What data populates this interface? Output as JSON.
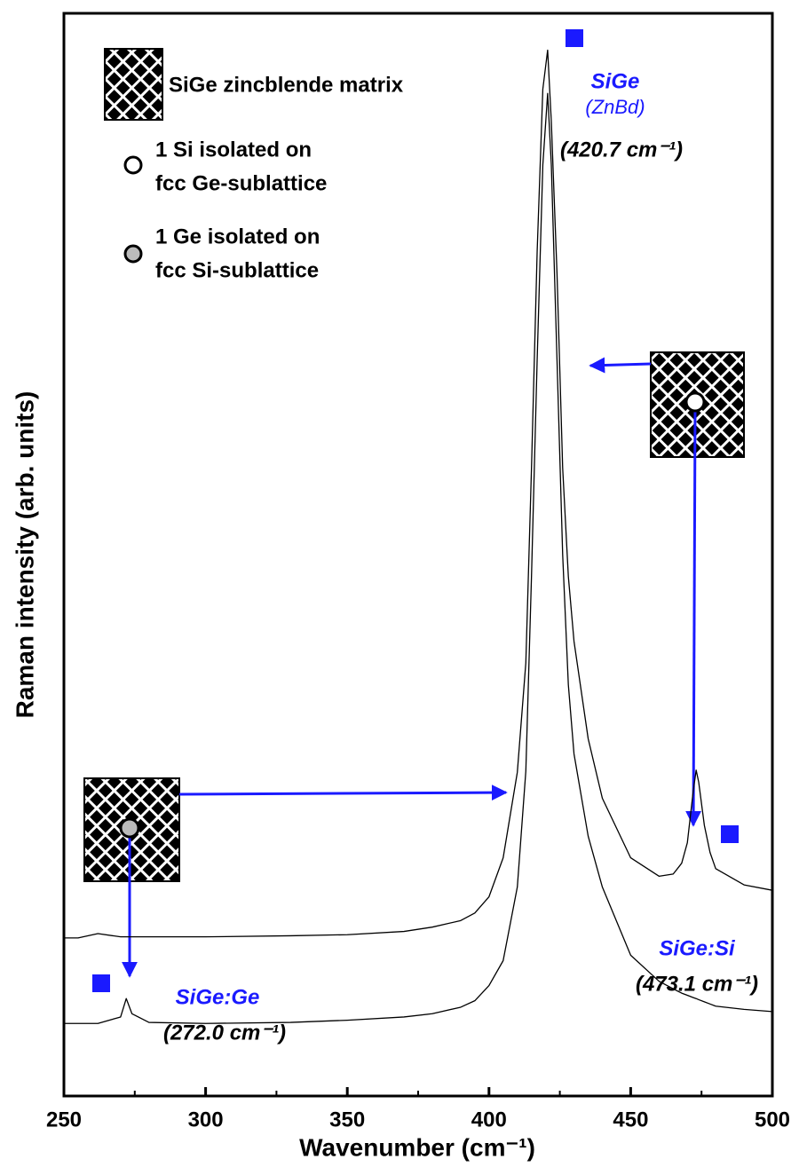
{
  "chart_data": {
    "type": "line",
    "x_label": "Wavenumber (cm⁻¹)",
    "y_label": "Raman intensity (arb. units)",
    "x": [
      250,
      255,
      262,
      270,
      272,
      274,
      280,
      300,
      330,
      350,
      370,
      380,
      390,
      395,
      400,
      405,
      410,
      413,
      415,
      417,
      419,
      420.7,
      422,
      424,
      426,
      428,
      430,
      435,
      440,
      450,
      460,
      465,
      468,
      470,
      472,
      473.1,
      474,
      476,
      478,
      480,
      490,
      500
    ],
    "series": [
      {
        "name": "1 Ge isolated on fcc Si-sublattice",
        "color": "#000000",
        "values": [
          6.7,
          6.7,
          6.7,
          7.3,
          9.0,
          7.6,
          6.8,
          6.7,
          6.8,
          7.0,
          7.3,
          7.6,
          8.2,
          8.8,
          10.2,
          12.5,
          19.3,
          30,
          48,
          68,
          86,
          92.6,
          86,
          68,
          50,
          38,
          31.6,
          24,
          19.3,
          13,
          10.6,
          9.9,
          9.5,
          9.3,
          9.1,
          9.0,
          8.9,
          8.7,
          8.5,
          8.3,
          8.0,
          7.8
        ]
      },
      {
        "name": "1 Si isolated on fcc Ge-sublattice",
        "color": "#000000",
        "values": [
          14.6,
          14.6,
          15.0,
          14.7,
          14.7,
          14.7,
          14.7,
          14.7,
          14.8,
          14.9,
          15.2,
          15.6,
          16.2,
          16.9,
          18.4,
          22,
          29.9,
          40,
          58,
          78,
          93,
          96.6,
          90,
          76,
          58,
          48,
          42,
          33,
          27.5,
          22,
          20.3,
          20.5,
          21.5,
          23.4,
          28,
          30.1,
          29,
          25,
          22.5,
          21,
          19.5,
          19
        ]
      }
    ],
    "xlim": [
      250,
      500
    ],
    "xticks": [
      250,
      300,
      350,
      400,
      450,
      500
    ],
    "ylim": [
      0,
      100
    ],
    "legend": [
      {
        "lines": [
          "SiGe zincblende matrix"
        ]
      },
      {
        "lines": [
          "1 Si isolated on",
          "fcc Ge-sublattice"
        ]
      },
      {
        "lines": [
          "1 Ge isolated on",
          "fcc Si-sublattice"
        ]
      }
    ],
    "annotations": [
      {
        "name": "SiGe",
        "sub": "(ZnBd)",
        "position": "(420.7 cm⁻¹)"
      },
      {
        "name": "SiGe:Si",
        "position": "(473.1 cm⁻¹)"
      },
      {
        "name": "SiGe:Ge",
        "position": "(272.0 cm⁻¹)"
      }
    ]
  }
}
